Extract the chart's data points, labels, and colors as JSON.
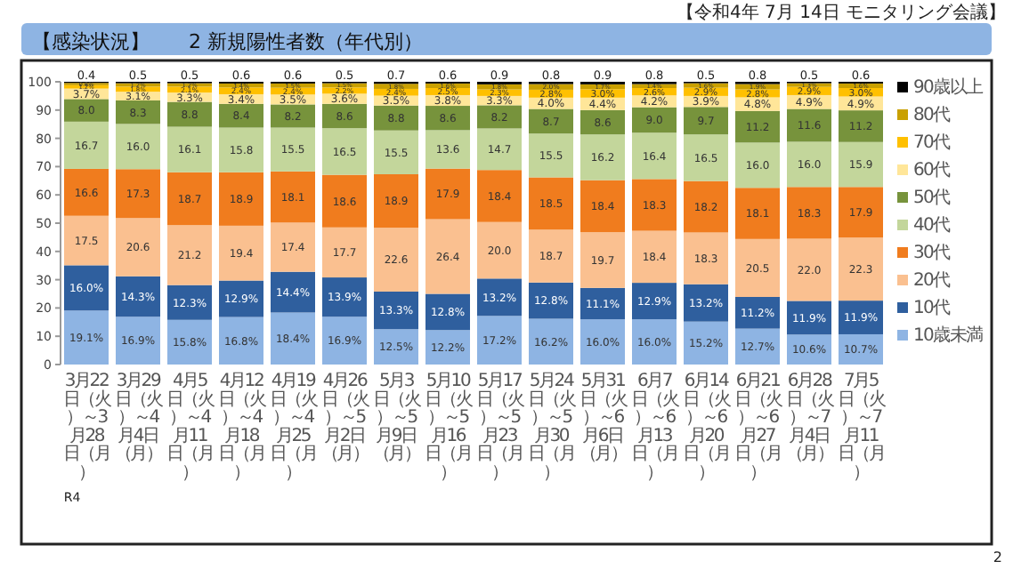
{
  "chart_data": {
    "type": "bar",
    "stacked": true,
    "title": "【感染状況】　　2 新規陽性者数（年代別）",
    "annotations": [
      "【令和4年 7月 14日 モニタリング会議】",
      "R4",
      "2"
    ],
    "categories": [
      "3月22日（火）～3月28日（月）",
      "3月29日（火）～4月4日（月）",
      "4月5日（火）～4月11日（月）",
      "4月12日（火）～4月18日（月）",
      "4月19日（火）～4月25日（月）",
      "4月26日（火）～5月2日（月）",
      "5月3日（火）～5月9日（月）",
      "5月10日（火）～5月16日（月）",
      "5月17日（火）～5月23日（月）",
      "5月24日（火）～5月30日（月）",
      "5月31日（火）～6月6日（月）",
      "6月7日（火）～6月13日（月）",
      "6月14日（火）～6月20日（月）",
      "6月21日（火）～6月27日（月）",
      "6月28日（火）～7月4日（月）",
      "7月5日（火）～7月11日（月）"
    ],
    "ylim": [
      0,
      100
    ],
    "yticks": [
      0,
      10,
      20,
      30,
      40,
      50,
      60,
      70,
      80,
      90,
      100
    ],
    "legend": "right",
    "series": [
      {
        "name": "10歳未満",
        "color": "#8eb4e3",
        "values": [
          19.1,
          16.9,
          15.8,
          16.8,
          18.4,
          16.9,
          12.5,
          12.2,
          17.2,
          16.2,
          16.0,
          16.0,
          15.2,
          12.7,
          10.6,
          10.7
        ],
        "value_labels": [
          "19.1%",
          "16.9%",
          "15.8%",
          "16.8%",
          "18.4%",
          "16.9%",
          "12.5%",
          "12.2%",
          "17.2%",
          "16.2%",
          "16.0%",
          "16.0%",
          "15.2%",
          "12.7%",
          "10.6%",
          "10.7%"
        ]
      },
      {
        "name": "10代",
        "color": "#2f5f9e",
        "values": [
          16.0,
          14.3,
          12.3,
          12.9,
          14.4,
          13.9,
          13.3,
          12.8,
          13.2,
          12.8,
          11.1,
          12.9,
          13.2,
          11.2,
          11.9,
          11.9
        ],
        "value_labels": [
          "16.0%",
          "14.3%",
          "12.3%",
          "12.9%",
          "14.4%",
          "13.9%",
          "13.3%",
          "12.8%",
          "13.2%",
          "12.8%",
          "11.1%",
          "12.9%",
          "13.2%",
          "11.2%",
          "11.9%",
          "11.9%"
        ]
      },
      {
        "name": "20代",
        "color": "#fac090",
        "values": [
          17.5,
          20.6,
          21.2,
          19.4,
          17.4,
          17.7,
          22.6,
          26.4,
          20.0,
          18.7,
          19.7,
          18.4,
          18.3,
          20.5,
          22.0,
          22.3
        ],
        "value_labels": [
          "17.5",
          "20.6",
          "21.2",
          "19.4",
          "17.4",
          "17.7",
          "22.6",
          "26.4",
          "20.0",
          "18.7",
          "19.7",
          "18.4",
          "18.3",
          "20.5",
          "22.0",
          "22.3"
        ]
      },
      {
        "name": "30代",
        "color": "#f07c1e",
        "values": [
          16.6,
          17.3,
          18.7,
          18.9,
          18.1,
          18.6,
          18.9,
          17.9,
          18.4,
          18.5,
          18.4,
          18.3,
          18.2,
          18.1,
          18.3,
          17.9
        ],
        "value_labels": [
          "16.6",
          "17.3",
          "18.7",
          "18.9",
          "18.1",
          "18.6",
          "18.9",
          "17.9",
          "18.4",
          "18.5",
          "18.4",
          "18.3",
          "18.2",
          "18.1",
          "18.3",
          "17.9"
        ]
      },
      {
        "name": "40代",
        "color": "#c3d69b",
        "values": [
          16.7,
          16.0,
          16.1,
          15.8,
          15.5,
          16.5,
          15.5,
          13.6,
          14.7,
          15.5,
          16.2,
          16.4,
          16.5,
          16.0,
          16.0,
          15.9
        ],
        "value_labels": [
          "16.7",
          "16.0",
          "16.1",
          "15.8",
          "15.5",
          "16.5",
          "15.5",
          "13.6",
          "14.7",
          "15.5",
          "16.2",
          "16.4",
          "16.5",
          "16.0",
          "16.0",
          "15.9"
        ]
      },
      {
        "name": "50代",
        "color": "#77933c",
        "values": [
          8.0,
          8.3,
          8.8,
          8.4,
          8.2,
          8.6,
          8.8,
          8.6,
          8.2,
          8.7,
          8.6,
          9.0,
          9.7,
          11.2,
          11.6,
          11.2
        ],
        "value_labels": [
          "8.0",
          "8.3",
          "8.8",
          "8.4",
          "8.2",
          "8.6",
          "8.8",
          "8.6",
          "8.2",
          "8.7",
          "8.6",
          "9.0",
          "9.7",
          "11.2",
          "11.6",
          "11.2"
        ]
      },
      {
        "name": "60代",
        "color": "#ffe699",
        "values": [
          3.7,
          3.1,
          3.3,
          3.4,
          3.5,
          3.6,
          3.5,
          3.8,
          3.3,
          4.0,
          4.4,
          4.2,
          3.9,
          4.8,
          4.9,
          4.9
        ],
        "value_labels": [
          "3.7%",
          "3.1%",
          "3.3%",
          "3.4%",
          "3.5%",
          "3.6%",
          "3.5%",
          "3.8%",
          "3.3%",
          "4.0%",
          "4.4%",
          "4.2%",
          "3.9%",
          "4.8%",
          "4.9%",
          "4.9%"
        ]
      },
      {
        "name": "70代",
        "color": "#ffc000",
        "values": [
          1.2,
          1.8,
          2.1,
          2.4,
          2.4,
          2.2,
          2.4,
          2.5,
          2.3,
          2.8,
          3.0,
          2.6,
          2.9,
          2.8,
          2.9,
          3.0
        ],
        "value_labels": [
          "1.2%",
          "1.8%",
          "2.1%",
          "2.4%",
          "2.4%",
          "2.2%",
          "2.4%",
          "2.5%",
          "2.3%",
          "2.8%",
          "3.0%",
          "2.6%",
          "2.9%",
          "2.8%",
          "2.9%",
          "3.0%"
        ]
      },
      {
        "name": "80代",
        "color": "#c9a000",
        "values": [
          0.8,
          1.2,
          1.2,
          1.4,
          1.5,
          1.5,
          1.8,
          1.6,
          1.8,
          2.0,
          1.7,
          1.4,
          1.6,
          1.9,
          1.3,
          1.6
        ],
        "value_labels": [
          "0.8%",
          "1.2%",
          "1.2%",
          "1.4%",
          "1.5%",
          "1.5%",
          "1.8%",
          "1.6%",
          "1.8%",
          "2.0%",
          "1.7%",
          "1.4%",
          "1.6%",
          "1.9%",
          "1.3%",
          "1.6%"
        ]
      },
      {
        "name": "90歳以上",
        "color": "#000000",
        "values": [
          0.4,
          0.5,
          0.5,
          0.6,
          0.6,
          0.5,
          0.7,
          0.6,
          0.9,
          0.8,
          0.9,
          0.8,
          0.5,
          0.8,
          0.5,
          0.6
        ],
        "value_labels": [
          "0.4",
          "0.5",
          "0.5",
          "0.6",
          "0.6",
          "0.5",
          "0.7",
          "0.6",
          "0.9",
          "0.8",
          "0.9",
          "0.8",
          "0.5",
          "0.8",
          "0.5",
          "0.6"
        ]
      }
    ]
  }
}
